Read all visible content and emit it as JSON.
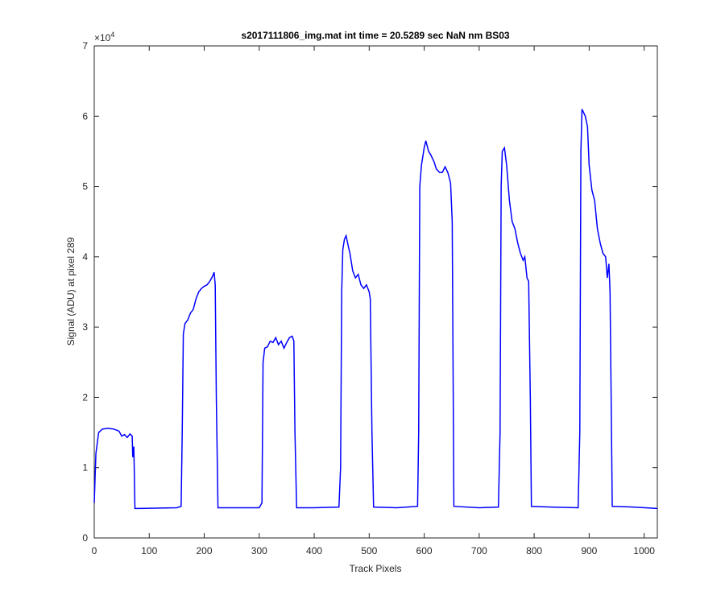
{
  "chart_data": {
    "type": "line",
    "title": "s2017111806_img.mat int time = 20.5289 sec  NaN nm BS03",
    "x_label": "Track Pixels",
    "y_label": "Signal (ADU) at pixel 289",
    "y_multiplier": {
      "base": "×10",
      "exponent": "4"
    },
    "xlim": [
      0,
      1024
    ],
    "ylim": [
      0,
      7
    ],
    "xticks": [
      0,
      100,
      200,
      300,
      400,
      500,
      600,
      700,
      800,
      900,
      1000
    ],
    "yticks": [
      0,
      1,
      2,
      3,
      4,
      5,
      6,
      7
    ],
    "grid": false,
    "series": [
      {
        "name": "signal",
        "color": "#0000ff",
        "x": [
          0,
          3,
          8,
          15,
          25,
          35,
          45,
          50,
          55,
          60,
          65,
          69,
          70,
          72,
          74,
          80,
          150,
          158,
          160,
          162,
          165,
          170,
          175,
          180,
          185,
          190,
          195,
          200,
          205,
          210,
          215,
          218,
          220,
          222,
          225,
          240,
          300,
          305,
          307,
          310,
          315,
          320,
          325,
          330,
          335,
          340,
          345,
          350,
          355,
          360,
          363,
          365,
          368,
          400,
          445,
          448,
          450,
          452,
          455,
          458,
          462,
          465,
          470,
          475,
          480,
          485,
          490,
          495,
          500,
          502,
          505,
          508,
          550,
          588,
          590,
          592,
          595,
          600,
          603,
          608,
          612,
          618,
          622,
          628,
          633,
          638,
          643,
          648,
          651,
          654,
          700,
          735,
          738,
          740,
          742,
          746,
          750,
          755,
          760,
          765,
          770,
          775,
          780,
          783,
          787,
          790,
          793,
          795,
          830,
          880,
          883,
          885,
          887,
          890,
          893,
          897,
          900,
          905,
          910,
          915,
          920,
          925,
          930,
          933,
          936,
          938,
          940,
          942,
          980,
          1024
        ],
        "values": [
          0.5,
          1.2,
          1.5,
          1.55,
          1.56,
          1.55,
          1.52,
          1.45,
          1.47,
          1.43,
          1.48,
          1.45,
          1.15,
          1.3,
          0.42,
          0.42,
          0.43,
          0.45,
          1.5,
          2.9,
          3.05,
          3.1,
          3.2,
          3.25,
          3.4,
          3.5,
          3.55,
          3.58,
          3.6,
          3.65,
          3.72,
          3.78,
          3.6,
          2.0,
          0.43,
          0.43,
          0.43,
          0.5,
          2.5,
          2.7,
          2.72,
          2.8,
          2.78,
          2.85,
          2.75,
          2.8,
          2.7,
          2.78,
          2.85,
          2.87,
          2.8,
          1.5,
          0.43,
          0.43,
          0.44,
          1.0,
          3.5,
          4.1,
          4.25,
          4.3,
          4.15,
          4.05,
          3.8,
          3.7,
          3.75,
          3.6,
          3.55,
          3.6,
          3.5,
          3.4,
          1.5,
          0.44,
          0.43,
          0.45,
          1.5,
          5.0,
          5.3,
          5.55,
          5.65,
          5.5,
          5.45,
          5.35,
          5.25,
          5.2,
          5.2,
          5.28,
          5.2,
          5.05,
          4.5,
          0.45,
          0.43,
          0.44,
          1.5,
          5.0,
          5.5,
          5.55,
          5.3,
          4.8,
          4.5,
          4.4,
          4.2,
          4.05,
          3.95,
          4.0,
          3.7,
          3.65,
          2.0,
          0.45,
          0.44,
          0.43,
          1.5,
          5.5,
          6.1,
          6.05,
          6.0,
          5.85,
          5.3,
          4.95,
          4.8,
          4.4,
          4.2,
          4.05,
          4.0,
          3.7,
          3.9,
          3.5,
          2.0,
          0.45,
          0.44,
          0.42
        ]
      }
    ]
  }
}
